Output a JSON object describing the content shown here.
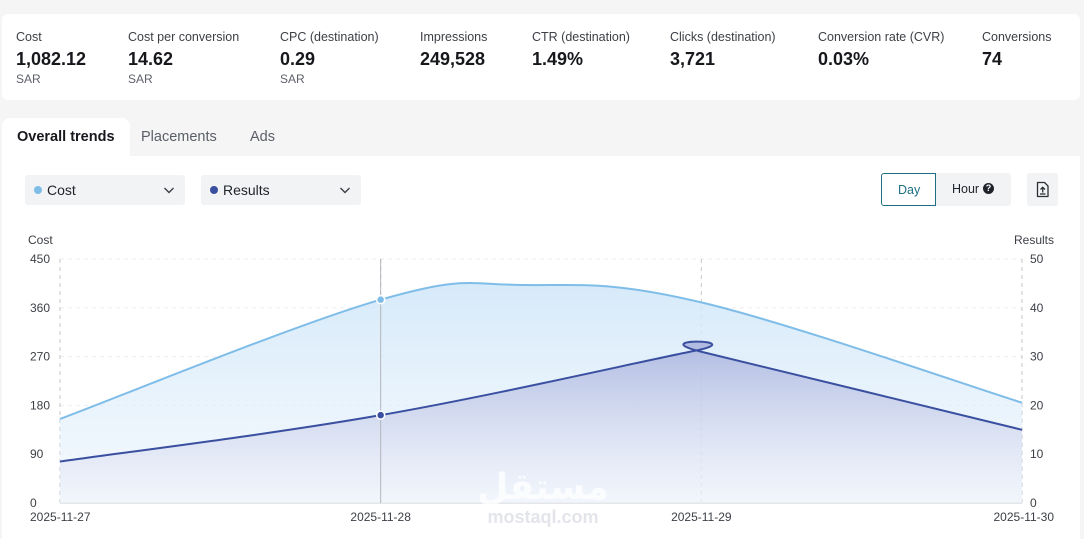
{
  "metrics": [
    {
      "label": "Cost",
      "value": "1,082.12",
      "unit": "SAR"
    },
    {
      "label": "Cost per conversion",
      "value": "14.62",
      "unit": "SAR"
    },
    {
      "label": "CPC (destination)",
      "value": "0.29",
      "unit": "SAR"
    },
    {
      "label": "Impressions",
      "value": "249,528",
      "unit": ""
    },
    {
      "label": "CTR (destination)",
      "value": "1.49%",
      "unit": ""
    },
    {
      "label": "Clicks (destination)",
      "value": "3,721",
      "unit": ""
    },
    {
      "label": "Conversion rate (CVR)",
      "value": "0.03%",
      "unit": ""
    },
    {
      "label": "Conversions",
      "value": "74",
      "unit": ""
    }
  ],
  "tabs": [
    {
      "label": "Overall trends",
      "active": true
    },
    {
      "label": "Placements",
      "active": false
    },
    {
      "label": "Ads",
      "active": false
    }
  ],
  "controls": {
    "primary_metric": {
      "label": "Cost",
      "color": "#7fbde9"
    },
    "secondary_metric": {
      "label": "Results",
      "color": "#3a4fa0"
    },
    "day_label": "Day",
    "hour_label": "Hour",
    "help_glyph": "?",
    "chevron_icon": "chevron-down-icon",
    "export_icon": "export-file-icon"
  },
  "watermark": {
    "arabic": "مستقل",
    "latin": "mostaql.com"
  },
  "chart_data": {
    "type": "line",
    "x": [
      "2025-11-27",
      "2025-11-28",
      "2025-11-29",
      "2025-11-30"
    ],
    "series": [
      {
        "name": "Cost",
        "axis": "left",
        "color": "#7fbde9",
        "values": [
          155,
          375,
          370,
          185
        ],
        "peak": {
          "x": "2025-11-28",
          "x_frac": 0.45,
          "value": 402
        }
      },
      {
        "name": "Results",
        "axis": "right",
        "color": "#3a4fa0",
        "values": [
          8.5,
          18,
          31,
          15
        ],
        "peak": {
          "x": "2025-11-29",
          "x_frac": -0.02,
          "value": 31.2
        }
      }
    ],
    "ylabel_left": "Cost",
    "ylabel_right": "Results",
    "yticks_left": [
      0,
      90,
      180,
      270,
      360,
      450
    ],
    "yticks_right": [
      0,
      10,
      20,
      30,
      40,
      50
    ],
    "ylim_left": [
      0,
      450
    ],
    "ylim_right": [
      0,
      50
    ],
    "hover": {
      "x": "2025-11-28"
    },
    "grid": true,
    "legend": "top-left (dropdown selectors)"
  }
}
